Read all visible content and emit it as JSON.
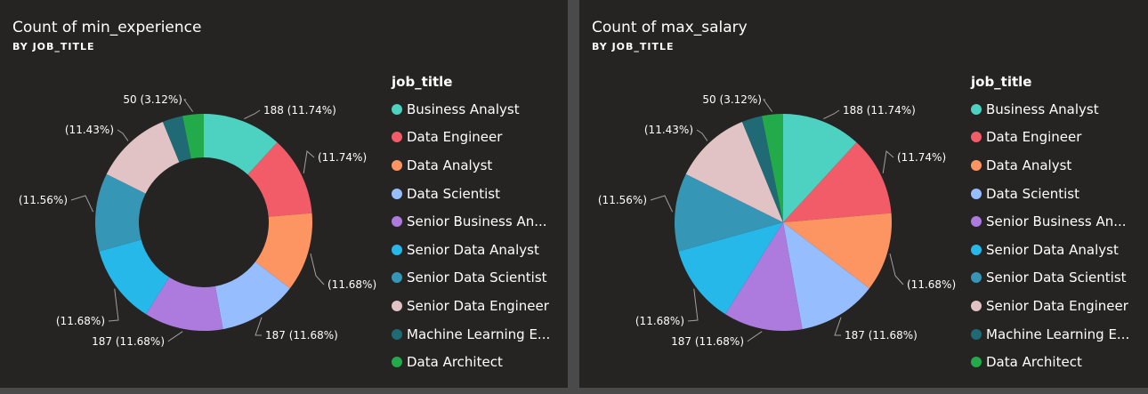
{
  "charts": [
    {
      "title": "Count of min_experience",
      "subtitle": "BY JOB_TITLE",
      "legend_title": "job_title",
      "legend_items": [
        "Business Analyst",
        "Data Engineer",
        "Data Analyst",
        "Data Scientist",
        "Senior Business An...",
        "Senior Data Analyst",
        "Senior Data Scientist",
        "Senior Data Engineer",
        "Machine Learning E...",
        "Data Architect"
      ],
      "data_labels": [
        "188 (11.74%)",
        "(11.74%)",
        "(11.68%)",
        "187 (11.68%)",
        "187 (11.68%)",
        "(11.68%)",
        "(11.56%)",
        "(11.43%)",
        "",
        "50 (3.12%)"
      ]
    },
    {
      "title": "Count of max_salary",
      "subtitle": "BY JOB_TITLE",
      "legend_title": "job_title",
      "legend_items": [
        "Business Analyst",
        "Data Engineer",
        "Data Analyst",
        "Data Scientist",
        "Senior Business An...",
        "Senior Data Analyst",
        "Senior Data Scientist",
        "Senior Data Engineer",
        "Machine Learning E...",
        "Data Architect"
      ],
      "data_labels": [
        "188 (11.74%)",
        "(11.74%)",
        "(11.68%)",
        "187 (11.68%)",
        "187 (11.68%)",
        "(11.68%)",
        "(11.56%)",
        "(11.43%)",
        "",
        "50 (3.12%)"
      ]
    }
  ],
  "chart_data": [
    {
      "type": "pie",
      "variant": "donut",
      "title": "Count of min_experience",
      "subtitle": "BY JOB_TITLE",
      "legend_title": "job_title",
      "legend_position": "right",
      "categories": [
        "Business Analyst",
        "Data Engineer",
        "Data Analyst",
        "Data Scientist",
        "Senior Business Analyst",
        "Senior Data Analyst",
        "Senior Data Scientist",
        "Senior Data Engineer",
        "Machine Learning Engineer",
        "Data Architect"
      ],
      "values": [
        188,
        188,
        187,
        187,
        187,
        187,
        185,
        183,
        48,
        50
      ],
      "colors": [
        "#4dd2c1",
        "#f25c68",
        "#fd9563",
        "#96bdfd",
        "#ad7bdd",
        "#27b8ea",
        "#3596b6",
        "#e1c2c5",
        "#1f6a75",
        "#22aa4b"
      ]
    },
    {
      "type": "pie",
      "title": "Count of max_salary",
      "subtitle": "BY JOB_TITLE",
      "legend_title": "job_title",
      "legend_position": "right",
      "categories": [
        "Business Analyst",
        "Data Engineer",
        "Data Analyst",
        "Data Scientist",
        "Senior Business Analyst",
        "Senior Data Analyst",
        "Senior Data Scientist",
        "Senior Data Engineer",
        "Machine Learning Engineer",
        "Data Architect"
      ],
      "values": [
        188,
        188,
        187,
        187,
        187,
        187,
        185,
        183,
        48,
        50
      ],
      "colors": [
        "#4dd2c1",
        "#f25c68",
        "#fd9563",
        "#96bdfd",
        "#ad7bdd",
        "#27b8ea",
        "#3596b6",
        "#e1c2c5",
        "#1f6a75",
        "#22aa4b"
      ]
    }
  ]
}
